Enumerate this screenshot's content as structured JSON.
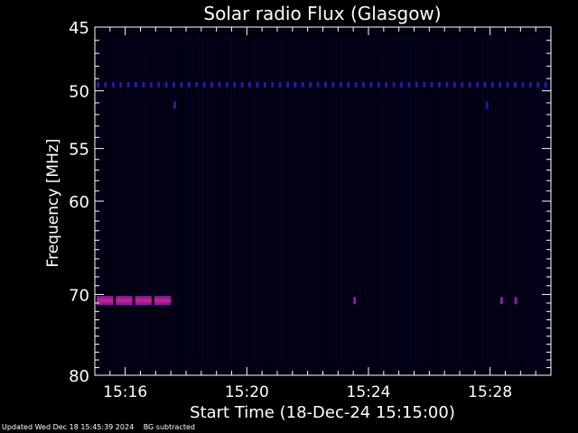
{
  "chart_data": {
    "type": "heatmap",
    "title": "Solar radio Flux (Glasgow)",
    "xlabel": "Start Time (18-Dec-24 15:15:00)",
    "ylabel": "Frequency [MHz]",
    "x_tick_labels": [
      "15:16",
      "15:20",
      "15:24",
      "15:28"
    ],
    "x_ticks_seconds": [
      60,
      300,
      540,
      780
    ],
    "xlim_seconds": [
      0,
      900
    ],
    "y_tick_labels": [
      "45",
      "50",
      "55",
      "60",
      "70",
      "80"
    ],
    "y_ticks": [
      45,
      50,
      55,
      60,
      70,
      80
    ],
    "ylim": [
      45,
      80
    ],
    "y_scale": "log",
    "y_inverted": true,
    "background_color": "#000010",
    "colors": {
      "faint": "#0d0d55",
      "band": "#14146e",
      "band_strong": "#2a1aa0",
      "burst_edge": "#8a1aa8",
      "burst_core": "#c8207a"
    },
    "features": [
      {
        "name": "persistent band near 49.5 MHz",
        "freq": 49.5,
        "t_start": 0,
        "t_end": 900,
        "intensity": "low"
      },
      {
        "name": "bright emission near 70.7 MHz",
        "freq": 70.7,
        "t_start": 0,
        "t_end": 150,
        "intensity": "high"
      },
      {
        "name": "spot",
        "freq": 70.7,
        "t_start": 510,
        "t_end": 515,
        "intensity": "medium"
      },
      {
        "name": "spot",
        "freq": 70.7,
        "t_start": 800,
        "t_end": 805,
        "intensity": "medium"
      },
      {
        "name": "spot",
        "freq": 70.7,
        "t_start": 828,
        "t_end": 833,
        "intensity": "medium"
      },
      {
        "name": "spot",
        "freq": 51.2,
        "t_start": 155,
        "t_end": 160,
        "intensity": "low"
      },
      {
        "name": "spot",
        "freq": 51.2,
        "t_start": 771,
        "t_end": 776,
        "intensity": "low"
      }
    ]
  },
  "footer": {
    "updated": "Updated Wed Dec 18 15:45:39 2024",
    "note": "BG subtracted"
  }
}
